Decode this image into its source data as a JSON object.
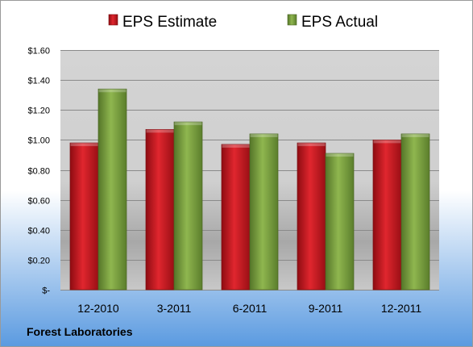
{
  "chart_data": {
    "type": "bar",
    "categories": [
      "12-2010",
      "3-2011",
      "6-2011",
      "9-2011",
      "12-2011"
    ],
    "series": [
      {
        "name": "EPS Estimate",
        "values": [
          0.98,
          1.07,
          0.97,
          0.98,
          1.0
        ],
        "color": "#c0141c"
      },
      {
        "name": "EPS Actual",
        "values": [
          1.34,
          1.12,
          1.04,
          0.91,
          1.04
        ],
        "color": "#7aa13c"
      }
    ],
    "ylim": [
      0,
      1.6
    ],
    "yticks": [
      0,
      0.2,
      0.4,
      0.6,
      0.8,
      1.0,
      1.2,
      1.4,
      1.6
    ],
    "ytick_labels": [
      "$-",
      "$0.20",
      "$0.40",
      "$0.60",
      "$0.80",
      "$1.00",
      "$1.20",
      "$1.40",
      "$1.60"
    ],
    "grid": true,
    "legend": "top"
  },
  "footer": {
    "company": "Forest Laboratories"
  },
  "colors": {
    "background_top": "#ffffff",
    "background_bottom": "#5a9ae0",
    "plot_top": "#d4d4d4",
    "plot_bottom": "#c8c8c8",
    "gridline": "#8a8a8a"
  }
}
